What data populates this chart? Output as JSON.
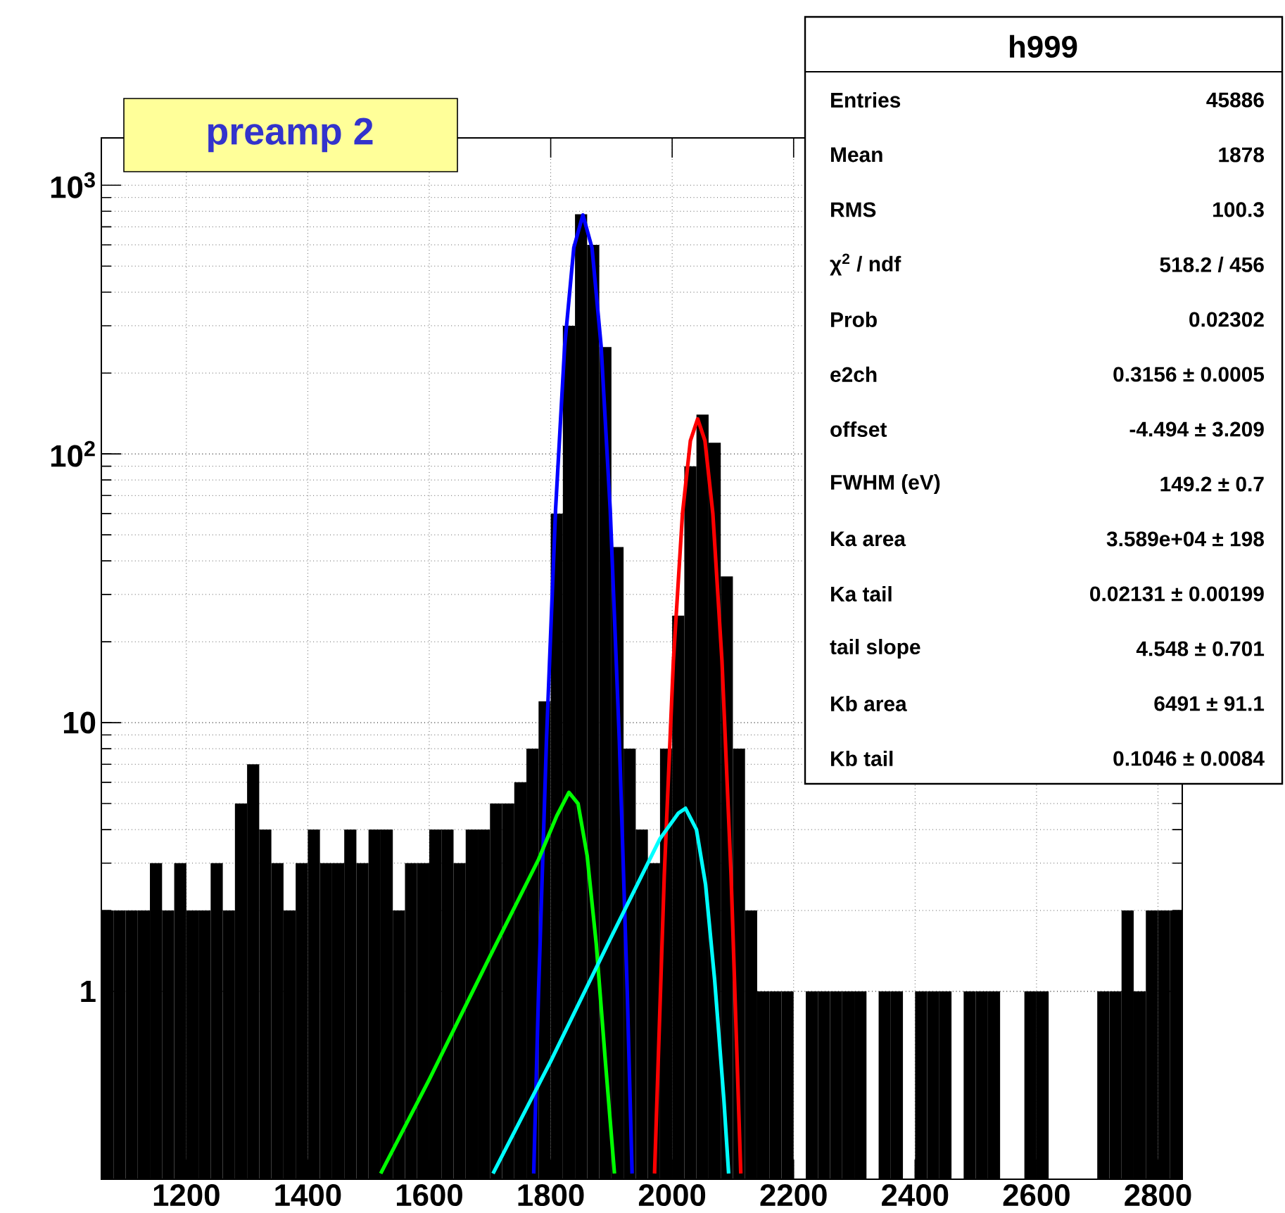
{
  "chart_data": {
    "type": "histogram",
    "xlim": [
      1060,
      2840
    ],
    "ylim": [
      0.2,
      1500
    ],
    "log": "y",
    "grid": true,
    "xticks": [
      1200,
      1400,
      1600,
      1800,
      2000,
      2200,
      2400,
      2600,
      2800
    ],
    "yticks": [
      {
        "value": 1,
        "label": "1"
      },
      {
        "value": 10,
        "label": "10"
      },
      {
        "value": 100,
        "label": "10$^{2}$"
      },
      {
        "value": 1000,
        "label": "10$^{3}$"
      }
    ],
    "series": [
      {
        "type": "histogram",
        "color": "#000000",
        "bins": [
          1060,
          1080,
          1100,
          1120,
          1140,
          1160,
          1180,
          1200,
          1220,
          1240,
          1260,
          1280,
          1300,
          1320,
          1340,
          1360,
          1380,
          1400,
          1420,
          1440,
          1460,
          1480,
          1500,
          1520,
          1540,
          1560,
          1580,
          1600,
          1620,
          1640,
          1660,
          1680,
          1700,
          1720,
          1740,
          1760,
          1780,
          1800,
          1820,
          1840,
          1860,
          1880,
          1900,
          1920,
          1940,
          1960,
          1980,
          2000,
          2020,
          2040,
          2060,
          2080,
          2100,
          2120,
          2140,
          2160,
          2180,
          2200,
          2220,
          2240,
          2260,
          2280,
          2300,
          2320,
          2340,
          2360,
          2380,
          2400,
          2420,
          2440,
          2460,
          2480,
          2500,
          2520,
          2540,
          2560,
          2580,
          2600,
          2620,
          2640,
          2660,
          2680,
          2700,
          2720,
          2740,
          2760,
          2780,
          2800,
          2820,
          2840
        ],
        "values": [
          2,
          2,
          2,
          2,
          3,
          2,
          3,
          2,
          2,
          3,
          2,
          5,
          7,
          4,
          3,
          2,
          3,
          4,
          3,
          3,
          4,
          3,
          4,
          4,
          2,
          3,
          3,
          4,
          4,
          3,
          4,
          4,
          5,
          5,
          6,
          8,
          12,
          60,
          300,
          780,
          600,
          250,
          45,
          8,
          4,
          3,
          8,
          25,
          90,
          140,
          110,
          35,
          8,
          2,
          1,
          1,
          1,
          null,
          1,
          1,
          1,
          1,
          1,
          null,
          1,
          1,
          null,
          1,
          1,
          1,
          null,
          1,
          1,
          1,
          null,
          null,
          1,
          1,
          null,
          null,
          null,
          null,
          1,
          1,
          2,
          1,
          2,
          2,
          2
        ]
      },
      {
        "type": "line",
        "color": "#0000ff",
        "x": [
          1772,
          1780,
          1793,
          1808,
          1823,
          1838,
          1853,
          1868,
          1883,
          1898,
          1913,
          1926,
          1934
        ],
        "values": [
          0.21,
          1,
          8.6,
          62,
          252,
          585,
          775,
          585,
          252,
          62,
          8.6,
          1,
          0.21
        ]
      },
      {
        "type": "line",
        "color": "#ff0000",
        "x": [
          1971,
          1987,
          2002,
          2017,
          2030,
          2042,
          2054,
          2067,
          2082,
          2097,
          2113
        ],
        "values": [
          0.21,
          2.7,
          17,
          60,
          112,
          135,
          112,
          60,
          17,
          2.7,
          0.21
        ]
      },
      {
        "type": "line",
        "color": "#00ff00",
        "x": [
          1520,
          1600,
          1700,
          1780,
          1810,
          1830,
          1845,
          1860,
          1875,
          1890,
          1905
        ],
        "values": [
          0.21,
          0.47,
          1.35,
          3.1,
          4.5,
          5.5,
          5.0,
          3.2,
          1.5,
          0.55,
          0.21
        ]
      },
      {
        "type": "line",
        "color": "#00ffff",
        "x": [
          1705,
          1800,
          1900,
          1980,
          2010,
          2022,
          2040,
          2055,
          2070,
          2085,
          2093
        ],
        "values": [
          0.21,
          0.55,
          1.6,
          3.7,
          4.6,
          4.8,
          4.0,
          2.5,
          1.1,
          0.4,
          0.21
        ]
      }
    ],
    "annotations": [
      "preamp 2",
      "h999",
      "Entries",
      "45886",
      "Mean",
      "1878",
      "RMS",
      "100.3",
      "χ$^{2}$ / ndf",
      "518.2 / 456",
      "Prob",
      "0.02302",
      "e2ch",
      "0.3156 ± 0.0005",
      "offset",
      "-4.494 ± 3.209",
      "FWHM (eV)",
      "149.2 ± 0.7",
      "Ka area",
      "3.589e+04 ± 198",
      "Ka tail",
      "0.02131 ± 0.00199",
      "tail slope",
      "4.548 ± 0.701",
      "Kb area",
      "6491 ± 91.1",
      "Kb tail",
      "0.1046 ± 0.0084"
    ]
  }
}
